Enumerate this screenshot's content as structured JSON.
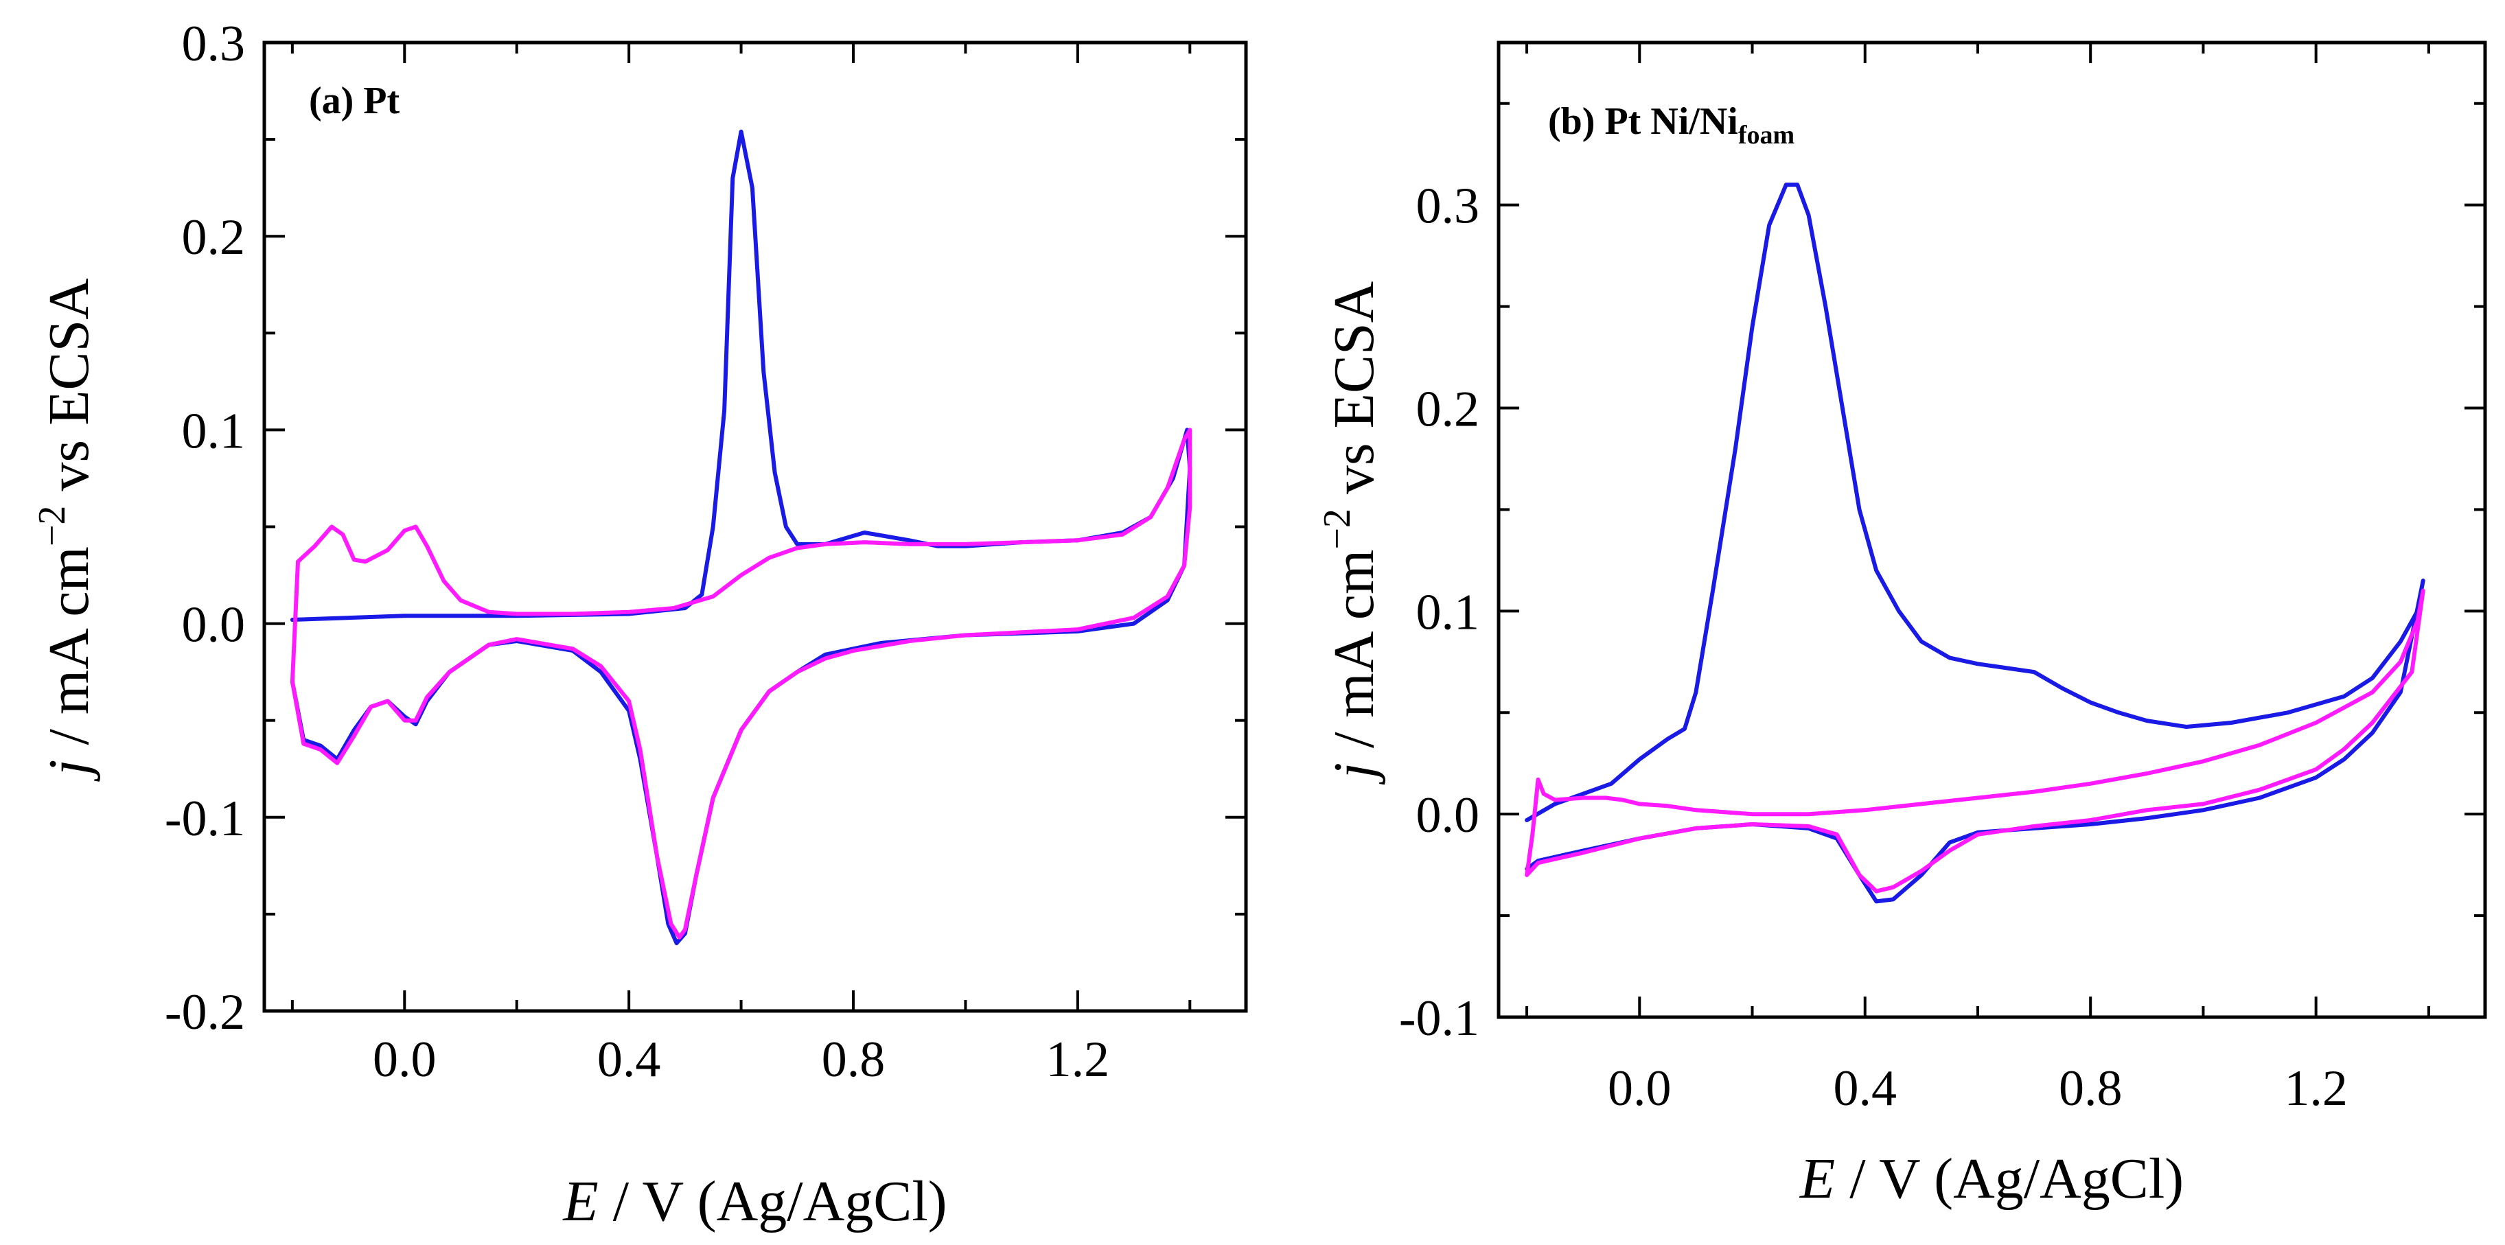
{
  "chart_data": [
    {
      "type": "line",
      "panel_label": "(a) Pt",
      "xlabel": {
        "italic": "E",
        "rest": " / V (Ag/AgCl)"
      },
      "ylabel": {
        "italic": "j",
        "rest": " / mA cm",
        "sup": "−2",
        "tail": " vs ECSA"
      },
      "xlim": [
        -0.25,
        1.5
      ],
      "ylim": [
        -0.2,
        0.3
      ],
      "xticks": [
        {
          "value": 0.0,
          "label": "0.0"
        },
        {
          "value": 0.4,
          "label": "0.4"
        },
        {
          "value": 0.8,
          "label": "0.8"
        },
        {
          "value": 1.2,
          "label": "1.2"
        }
      ],
      "yticks": [
        {
          "value": -0.2,
          "label": "-0.2"
        },
        {
          "value": -0.1,
          "label": "-0.1"
        },
        {
          "value": 0.0,
          "label": "0.0"
        },
        {
          "value": 0.1,
          "label": "0.1"
        },
        {
          "value": 0.2,
          "label": "0.2"
        },
        {
          "value": 0.3,
          "label": "0.3"
        }
      ],
      "series": [
        {
          "name": "blue",
          "color": "#1a1ae6",
          "points": [
            [
              -0.2,
              0.002
            ],
            [
              0.0,
              0.004
            ],
            [
              0.2,
              0.004
            ],
            [
              0.4,
              0.005
            ],
            [
              0.5,
              0.008
            ],
            [
              0.53,
              0.015
            ],
            [
              0.55,
              0.05
            ],
            [
              0.57,
              0.11
            ],
            [
              0.585,
              0.23
            ],
            [
              0.6,
              0.254
            ],
            [
              0.62,
              0.225
            ],
            [
              0.64,
              0.13
            ],
            [
              0.66,
              0.078
            ],
            [
              0.68,
              0.05
            ],
            [
              0.7,
              0.041
            ],
            [
              0.75,
              0.041
            ],
            [
              0.82,
              0.047
            ],
            [
              0.9,
              0.043
            ],
            [
              0.95,
              0.04
            ],
            [
              1.0,
              0.04
            ],
            [
              1.1,
              0.042
            ],
            [
              1.2,
              0.043
            ],
            [
              1.28,
              0.047
            ],
            [
              1.33,
              0.055
            ],
            [
              1.37,
              0.075
            ],
            [
              1.395,
              0.1
            ],
            [
              1.4,
              0.08
            ],
            [
              1.39,
              0.03
            ],
            [
              1.36,
              0.012
            ],
            [
              1.3,
              0.0
            ],
            [
              1.2,
              -0.004
            ],
            [
              1.0,
              -0.006
            ],
            [
              0.85,
              -0.01
            ],
            [
              0.75,
              -0.016
            ],
            [
              0.7,
              -0.025
            ],
            [
              0.65,
              -0.035
            ],
            [
              0.6,
              -0.055
            ],
            [
              0.55,
              -0.09
            ],
            [
              0.52,
              -0.13
            ],
            [
              0.5,
              -0.16
            ],
            [
              0.485,
              -0.165
            ],
            [
              0.47,
              -0.155
            ],
            [
              0.45,
              -0.12
            ],
            [
              0.42,
              -0.07
            ],
            [
              0.4,
              -0.045
            ],
            [
              0.35,
              -0.025
            ],
            [
              0.3,
              -0.014
            ],
            [
              0.2,
              -0.009
            ],
            [
              0.15,
              -0.011
            ],
            [
              0.08,
              -0.025
            ],
            [
              0.04,
              -0.04
            ],
            [
              0.02,
              -0.052
            ],
            [
              0.0,
              -0.048
            ],
            [
              -0.03,
              -0.04
            ],
            [
              -0.06,
              -0.043
            ],
            [
              -0.09,
              -0.055
            ],
            [
              -0.12,
              -0.07
            ],
            [
              -0.15,
              -0.063
            ],
            [
              -0.18,
              -0.06
            ],
            [
              -0.2,
              -0.03
            ]
          ]
        },
        {
          "name": "magenta",
          "color": "#ff1aff",
          "points": [
            [
              -0.2,
              -0.03
            ],
            [
              -0.19,
              0.032
            ],
            [
              -0.16,
              0.04
            ],
            [
              -0.13,
              0.05
            ],
            [
              -0.11,
              0.046
            ],
            [
              -0.09,
              0.033
            ],
            [
              -0.07,
              0.032
            ],
            [
              -0.03,
              0.038
            ],
            [
              0.0,
              0.048
            ],
            [
              0.02,
              0.05
            ],
            [
              0.04,
              0.04
            ],
            [
              0.07,
              0.022
            ],
            [
              0.1,
              0.012
            ],
            [
              0.15,
              0.006
            ],
            [
              0.2,
              0.005
            ],
            [
              0.3,
              0.005
            ],
            [
              0.4,
              0.006
            ],
            [
              0.48,
              0.008
            ],
            [
              0.55,
              0.014
            ],
            [
              0.6,
              0.025
            ],
            [
              0.65,
              0.034
            ],
            [
              0.7,
              0.039
            ],
            [
              0.75,
              0.041
            ],
            [
              0.82,
              0.042
            ],
            [
              0.9,
              0.041
            ],
            [
              1.0,
              0.041
            ],
            [
              1.1,
              0.042
            ],
            [
              1.2,
              0.043
            ],
            [
              1.28,
              0.046
            ],
            [
              1.33,
              0.055
            ],
            [
              1.36,
              0.07
            ],
            [
              1.39,
              0.095
            ],
            [
              1.4,
              0.1
            ],
            [
              1.4,
              0.06
            ],
            [
              1.39,
              0.03
            ],
            [
              1.36,
              0.014
            ],
            [
              1.3,
              0.003
            ],
            [
              1.2,
              -0.003
            ],
            [
              1.0,
              -0.006
            ],
            [
              0.9,
              -0.009
            ],
            [
              0.8,
              -0.014
            ],
            [
              0.75,
              -0.018
            ],
            [
              0.7,
              -0.025
            ],
            [
              0.65,
              -0.035
            ],
            [
              0.6,
              -0.055
            ],
            [
              0.55,
              -0.09
            ],
            [
              0.52,
              -0.13
            ],
            [
              0.5,
              -0.158
            ],
            [
              0.49,
              -0.162
            ],
            [
              0.475,
              -0.155
            ],
            [
              0.45,
              -0.12
            ],
            [
              0.42,
              -0.065
            ],
            [
              0.4,
              -0.04
            ],
            [
              0.35,
              -0.022
            ],
            [
              0.3,
              -0.013
            ],
            [
              0.2,
              -0.008
            ],
            [
              0.15,
              -0.011
            ],
            [
              0.08,
              -0.025
            ],
            [
              0.04,
              -0.038
            ],
            [
              0.02,
              -0.05
            ],
            [
              0.0,
              -0.05
            ],
            [
              -0.03,
              -0.04
            ],
            [
              -0.06,
              -0.043
            ],
            [
              -0.09,
              -0.058
            ],
            [
              -0.12,
              -0.072
            ],
            [
              -0.15,
              -0.065
            ],
            [
              -0.18,
              -0.062
            ],
            [
              -0.2,
              -0.03
            ]
          ]
        }
      ]
    },
    {
      "type": "line",
      "panel_label": "(b) Pt Ni/Ni",
      "panel_label_sub": "foam",
      "xlabel": {
        "italic": "E",
        "rest": " / V (Ag/AgCl)"
      },
      "ylabel": {
        "italic": "j",
        "rest": " / mA cm",
        "sup": "−2",
        "tail": " vs ECSA"
      },
      "xlim": [
        -0.25,
        1.5
      ],
      "ylim": [
        -0.1,
        0.38
      ],
      "xticks": [
        {
          "value": 0.0,
          "label": "0.0"
        },
        {
          "value": 0.4,
          "label": "0.4"
        },
        {
          "value": 0.8,
          "label": "0.8"
        },
        {
          "value": 1.2,
          "label": "1.2"
        }
      ],
      "yticks": [
        {
          "value": -0.1,
          "label": "-0.1"
        },
        {
          "value": 0.0,
          "label": "0.0"
        },
        {
          "value": 0.1,
          "label": "0.1"
        },
        {
          "value": 0.2,
          "label": "0.2"
        },
        {
          "value": 0.3,
          "label": "0.3"
        }
      ],
      "series": [
        {
          "name": "blue",
          "color": "#1a1ae6",
          "points": [
            [
              -0.2,
              -0.003
            ],
            [
              -0.15,
              0.005
            ],
            [
              -0.1,
              0.01
            ],
            [
              -0.05,
              0.015
            ],
            [
              0.0,
              0.027
            ],
            [
              0.05,
              0.037
            ],
            [
              0.08,
              0.042
            ],
            [
              0.1,
              0.06
            ],
            [
              0.13,
              0.11
            ],
            [
              0.17,
              0.18
            ],
            [
              0.2,
              0.24
            ],
            [
              0.23,
              0.29
            ],
            [
              0.26,
              0.31
            ],
            [
              0.28,
              0.31
            ],
            [
              0.3,
              0.295
            ],
            [
              0.33,
              0.25
            ],
            [
              0.36,
              0.2
            ],
            [
              0.39,
              0.15
            ],
            [
              0.42,
              0.12
            ],
            [
              0.46,
              0.1
            ],
            [
              0.5,
              0.085
            ],
            [
              0.55,
              0.077
            ],
            [
              0.6,
              0.074
            ],
            [
              0.7,
              0.07
            ],
            [
              0.75,
              0.062
            ],
            [
              0.8,
              0.055
            ],
            [
              0.85,
              0.05
            ],
            [
              0.9,
              0.046
            ],
            [
              0.97,
              0.043
            ],
            [
              1.05,
              0.045
            ],
            [
              1.15,
              0.05
            ],
            [
              1.25,
              0.058
            ],
            [
              1.3,
              0.067
            ],
            [
              1.35,
              0.085
            ],
            [
              1.38,
              0.1
            ],
            [
              1.39,
              0.115
            ],
            [
              1.35,
              0.06
            ],
            [
              1.3,
              0.04
            ],
            [
              1.25,
              0.027
            ],
            [
              1.2,
              0.018
            ],
            [
              1.1,
              0.008
            ],
            [
              1.0,
              0.002
            ],
            [
              0.9,
              -0.002
            ],
            [
              0.8,
              -0.005
            ],
            [
              0.7,
              -0.007
            ],
            [
              0.6,
              -0.009
            ],
            [
              0.55,
              -0.014
            ],
            [
              0.5,
              -0.03
            ],
            [
              0.45,
              -0.042
            ],
            [
              0.42,
              -0.043
            ],
            [
              0.39,
              -0.03
            ],
            [
              0.35,
              -0.012
            ],
            [
              0.3,
              -0.007
            ],
            [
              0.2,
              -0.005
            ],
            [
              0.1,
              -0.007
            ],
            [
              0.0,
              -0.012
            ],
            [
              -0.1,
              -0.018
            ],
            [
              -0.18,
              -0.023
            ],
            [
              -0.2,
              -0.027
            ]
          ]
        },
        {
          "name": "magenta",
          "color": "#ff1aff",
          "points": [
            [
              -0.2,
              -0.03
            ],
            [
              -0.19,
              -0.01
            ],
            [
              -0.18,
              0.017
            ],
            [
              -0.17,
              0.01
            ],
            [
              -0.15,
              0.007
            ],
            [
              -0.1,
              0.008
            ],
            [
              -0.06,
              0.008
            ],
            [
              -0.03,
              0.007
            ],
            [
              0.0,
              0.005
            ],
            [
              0.05,
              0.004
            ],
            [
              0.1,
              0.002
            ],
            [
              0.2,
              0.0
            ],
            [
              0.3,
              0.0
            ],
            [
              0.4,
              0.002
            ],
            [
              0.5,
              0.005
            ],
            [
              0.6,
              0.008
            ],
            [
              0.7,
              0.011
            ],
            [
              0.8,
              0.015
            ],
            [
              0.9,
              0.02
            ],
            [
              1.0,
              0.026
            ],
            [
              1.1,
              0.034
            ],
            [
              1.2,
              0.045
            ],
            [
              1.3,
              0.06
            ],
            [
              1.35,
              0.075
            ],
            [
              1.38,
              0.095
            ],
            [
              1.39,
              0.11
            ],
            [
              1.37,
              0.07
            ],
            [
              1.3,
              0.045
            ],
            [
              1.25,
              0.032
            ],
            [
              1.2,
              0.022
            ],
            [
              1.1,
              0.012
            ],
            [
              1.0,
              0.005
            ],
            [
              0.9,
              0.002
            ],
            [
              0.8,
              -0.003
            ],
            [
              0.7,
              -0.006
            ],
            [
              0.6,
              -0.01
            ],
            [
              0.55,
              -0.018
            ],
            [
              0.5,
              -0.028
            ],
            [
              0.45,
              -0.036
            ],
            [
              0.42,
              -0.038
            ],
            [
              0.39,
              -0.03
            ],
            [
              0.35,
              -0.01
            ],
            [
              0.3,
              -0.006
            ],
            [
              0.2,
              -0.005
            ],
            [
              0.1,
              -0.007
            ],
            [
              0.0,
              -0.012
            ],
            [
              -0.1,
              -0.019
            ],
            [
              -0.18,
              -0.024
            ],
            [
              -0.2,
              -0.03
            ]
          ]
        }
      ]
    }
  ]
}
